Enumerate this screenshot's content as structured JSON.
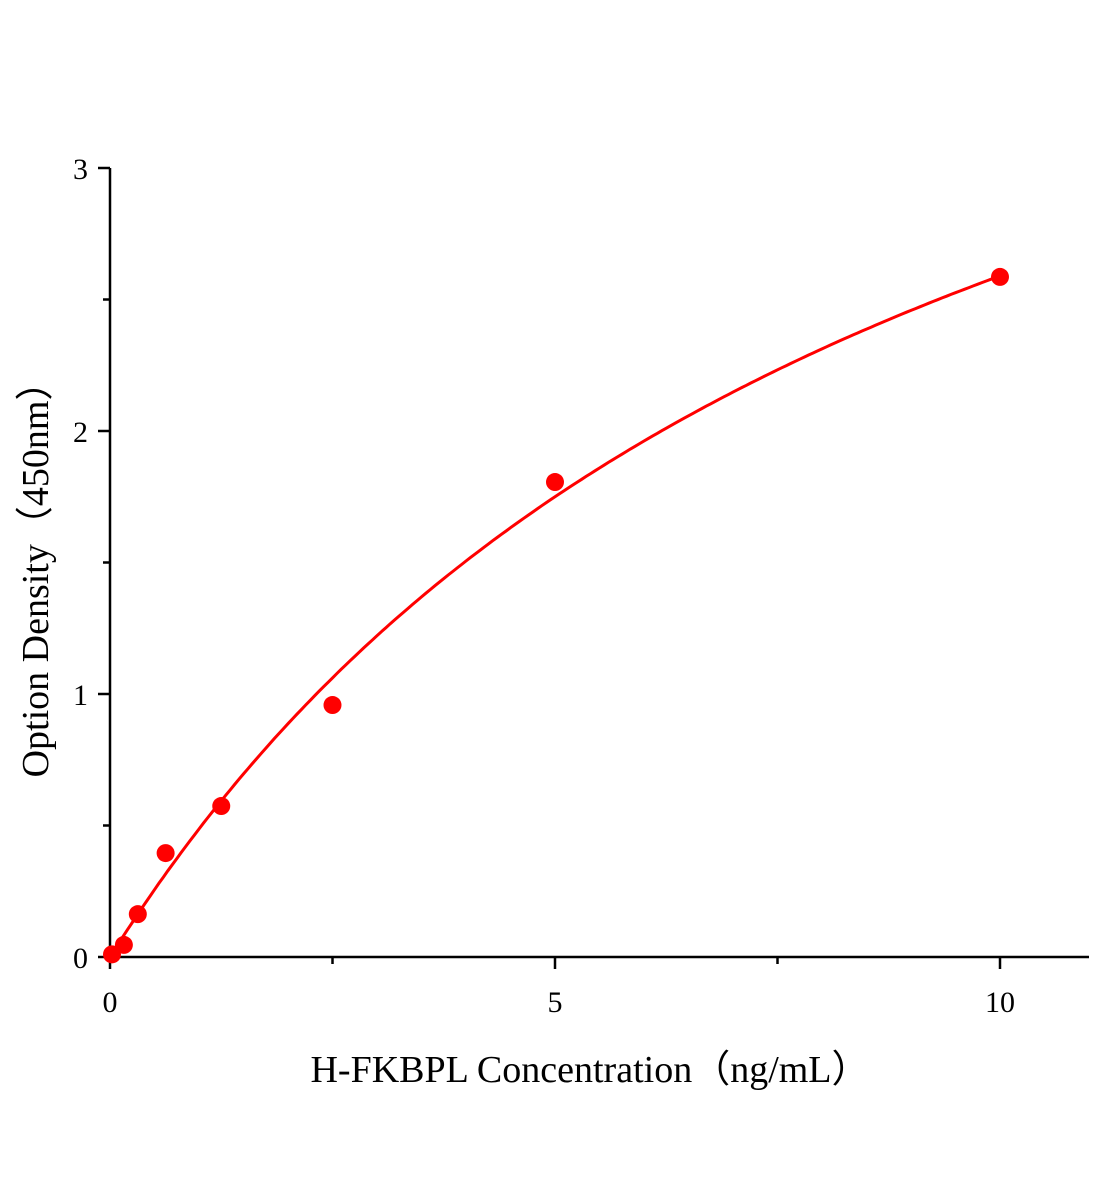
{
  "chart_data": {
    "type": "scatter",
    "xlabel": "H-FKBPL Concentration（ng/mL）",
    "ylabel": "Option Density（450nm）",
    "xlim": [
      0,
      11
    ],
    "ylim": [
      0,
      3
    ],
    "x_ticks": [
      "0",
      "5",
      "10"
    ],
    "y_ticks": [
      "0",
      "1",
      "2",
      "3"
    ],
    "grid": false,
    "series": [
      {
        "x": [
          0,
          0.156,
          0.3125,
          0.625,
          1.25,
          2.5,
          5,
          10
        ],
        "y": [
          0.01,
          0.046,
          0.163,
          0.395,
          0.574,
          0.958,
          1.806,
          2.586
        ],
        "marker_color": "#ff0000"
      }
    ],
    "fit_curve": {
      "color": "#ff0000",
      "x_range": [
        0,
        10
      ]
    }
  }
}
